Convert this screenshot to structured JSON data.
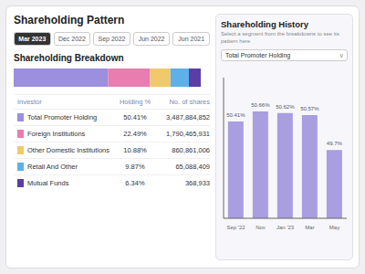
{
  "title": "Shareholding Pattern",
  "annotations": {
    "tabs": [
      "Mar 2023",
      "Dec 2022",
      "Sep 2022",
      "Jun 2022",
      "Jun 2021"
    ],
    "active_tab": "Mar 2023",
    "table_headers": [
      "Investor",
      "Holding %",
      "No. of shares"
    ],
    "dropdown": [
      "Total Promoter Holding",
      "v"
    ]
  },
  "chart_data": [
    {
      "type": "bar",
      "orientation": "horizontal",
      "stacked": true,
      "title": "Shareholding Breakdown",
      "categories": [
        null
      ],
      "xlim": [
        0,
        100
      ],
      "tick_labels": false,
      "grid": false,
      "series": [
        {
          "name": "Total Promoter Holding",
          "color": "#9b8fde",
          "values": [
            50.41
          ],
          "value_labels": [
            "50.41%"
          ],
          "shares": {
            "value": 3487884852,
            "label": "3,487,884,852"
          }
        },
        {
          "name": "Foreign Institutions",
          "color": "#e87db0",
          "values": [
            22.49
          ],
          "value_labels": [
            "22.49%"
          ],
          "shares": {
            "value": 1790465931,
            "label": "1,790,465,931"
          }
        },
        {
          "name": "Other Domestic Institutions",
          "color": "#f0c96a",
          "values": [
            10.88
          ],
          "value_labels": [
            "10.88%"
          ],
          "shares": {
            "value": 860861006,
            "label": "860,861,006"
          }
        },
        {
          "name": "Retail And Other",
          "color": "#5fb0e8",
          "values": [
            9.87
          ],
          "value_labels": [
            "9.87%"
          ],
          "shares": {
            "value": 65088409,
            "label": "65,088,409"
          }
        },
        {
          "name": "Mutual Funds",
          "color": "#5a3ea6",
          "values": [
            6.34
          ],
          "value_labels": [
            "6.34%"
          ],
          "shares": {
            "value": 368933,
            "label": "368,933"
          }
        }
      ]
    },
    {
      "type": "bar",
      "title": "Shareholding History",
      "subtitle": "Select a segment from the breakdowns to see its\npattern here",
      "categories": [
        "Sep '22",
        "Nov",
        "Jan '23",
        "Mar",
        "May"
      ],
      "values": [
        50.41,
        50.66,
        50.62,
        50.57,
        49.7
      ],
      "value_labels": [
        "50.41%",
        "50.66%",
        "50.62%",
        "50.57%",
        "49.7%"
      ],
      "color": "#a89ee0",
      "ylim": [
        48,
        51.5
      ],
      "data_labels": true,
      "tick_labels": "x",
      "grid": false
    }
  ]
}
